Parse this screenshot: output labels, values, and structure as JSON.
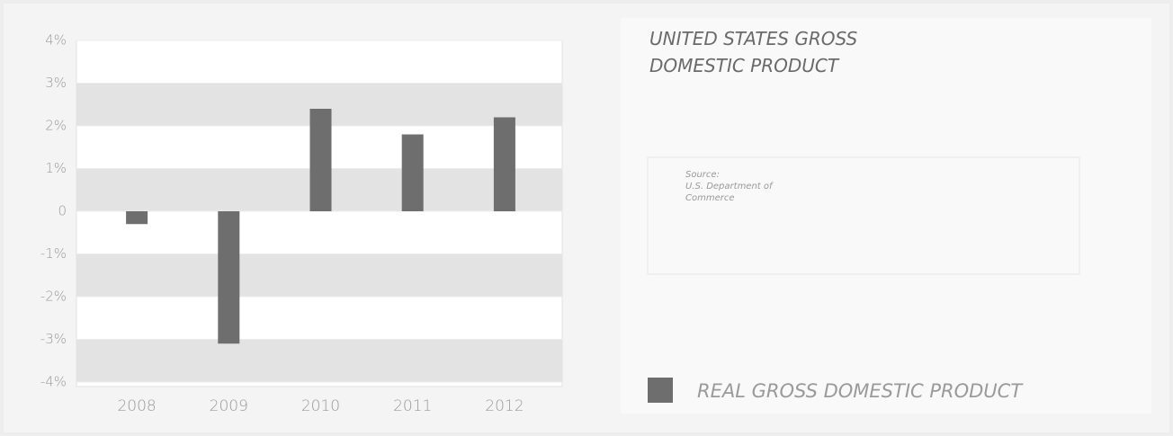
{
  "chart_data": {
    "type": "bar",
    "title": "UNITED STATES GROSS DOMESTIC PRODUCT",
    "source_label": "Source:",
    "source": "U.S. Department of Commerce",
    "categories": [
      "2008",
      "2009",
      "2010",
      "2011",
      "2012"
    ],
    "series": [
      {
        "name": "REAL GROSS DOMESTIC PRODUCT",
        "color": "#6e6e6e",
        "values": [
          -0.3,
          -3.1,
          2.4,
          1.8,
          2.2
        ]
      }
    ],
    "ylim": [
      -4,
      4
    ],
    "yticks": [
      {
        "value": -4,
        "label": "-4%"
      },
      {
        "value": -3,
        "label": "-3%"
      },
      {
        "value": -2,
        "label": "-2%"
      },
      {
        "value": -1,
        "label": "-1%"
      },
      0,
      {
        "value": 1,
        "label": "1%"
      },
      {
        "value": 2,
        "label": "2%"
      },
      {
        "value": 3,
        "label": "3%"
      },
      {
        "value": 4,
        "label": "4%"
      }
    ],
    "grid": true
  }
}
